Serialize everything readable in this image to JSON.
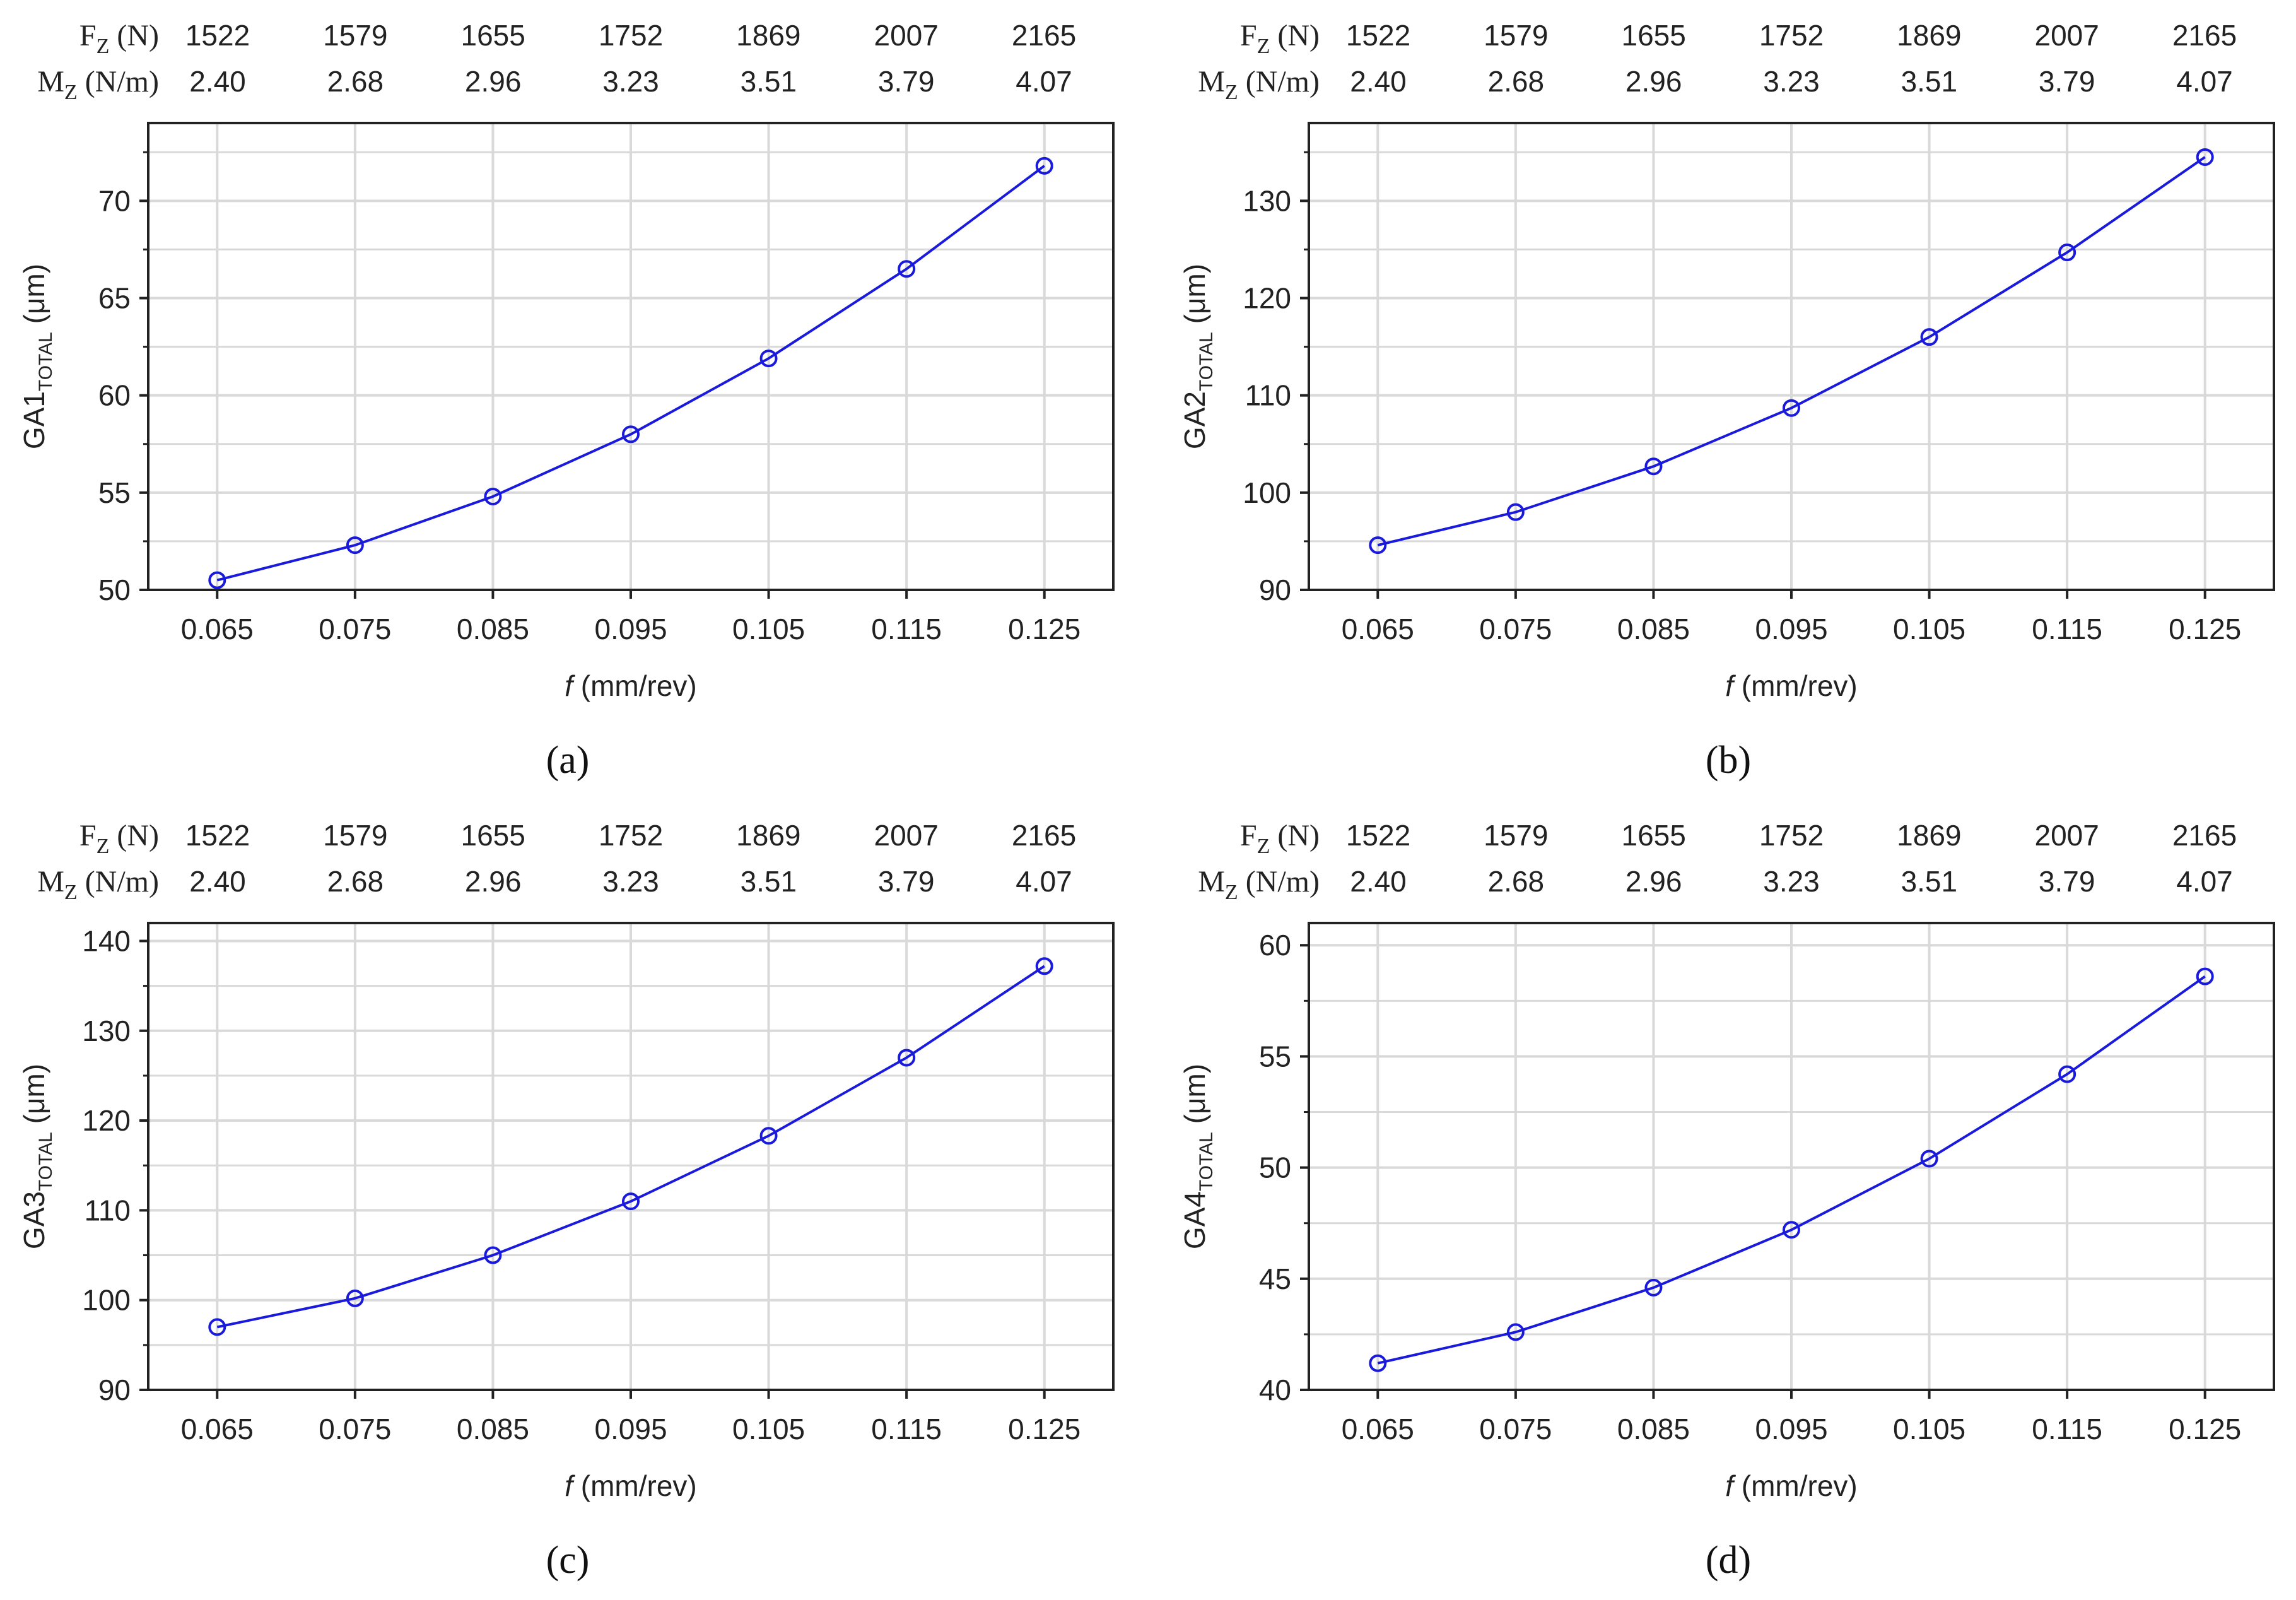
{
  "top_table": {
    "fz_label": "F",
    "fz_sub": "Z",
    "fz_unit": "(N)",
    "mz_label": "M",
    "mz_sub": "Z",
    "mz_unit": "(N/m)",
    "fz_values": [
      "1522",
      "1579",
      "1655",
      "1752",
      "1869",
      "2007",
      "2165"
    ],
    "mz_values": [
      "2.40",
      "2.68",
      "2.96",
      "3.23",
      "3.51",
      "3.79",
      "4.07"
    ]
  },
  "x_axis": {
    "label_italic": "f",
    "label_unit": "(mm/rev)",
    "tick_labels": [
      "0.065",
      "0.075",
      "0.085",
      "0.095",
      "0.105",
      "0.115",
      "0.125"
    ]
  },
  "colors": {
    "series": "#1a1adc",
    "grid": "#d9d9d9",
    "axis": "#222222"
  },
  "panels": [
    {
      "caption": "(a)",
      "ylabel": "GA1",
      "ylabel_sub": "TOTAL",
      "ylabel_unit": "(μm)",
      "yticks": [
        "50",
        "55",
        "60",
        "65",
        "70"
      ]
    },
    {
      "caption": "(b)",
      "ylabel": "GA2",
      "ylabel_sub": "TOTAL",
      "ylabel_unit": "(μm)",
      "yticks": [
        "90",
        "100",
        "110",
        "120",
        "130"
      ]
    },
    {
      "caption": "(c)",
      "ylabel": "GA3",
      "ylabel_sub": "TOTAL",
      "ylabel_unit": "(μm)",
      "yticks": [
        "90",
        "100",
        "110",
        "120",
        "130",
        "140"
      ]
    },
    {
      "caption": "(d)",
      "ylabel": "GA4",
      "ylabel_sub": "TOTAL",
      "ylabel_unit": "(μm)",
      "yticks": [
        "40",
        "45",
        "50",
        "55",
        "60"
      ]
    }
  ],
  "chart_data": [
    {
      "type": "line",
      "title": "",
      "xlabel": "f (mm/rev)",
      "ylabel": "GA1TOTAL (μm)",
      "x": [
        0.065,
        0.075,
        0.085,
        0.095,
        0.105,
        0.115,
        0.125
      ],
      "y": [
        50.5,
        52.3,
        54.8,
        58.0,
        61.9,
        66.5,
        71.8
      ],
      "xlim": [
        0.06,
        0.13
      ],
      "ylim": [
        50,
        74
      ],
      "grid": true
    },
    {
      "type": "line",
      "title": "",
      "xlabel": "f (mm/rev)",
      "ylabel": "GA2TOTAL (μm)",
      "x": [
        0.065,
        0.075,
        0.085,
        0.095,
        0.105,
        0.115,
        0.125
      ],
      "y": [
        94.6,
        98.0,
        102.7,
        108.7,
        116.0,
        124.7,
        134.5
      ],
      "xlim": [
        0.06,
        0.13
      ],
      "ylim": [
        90,
        138
      ],
      "grid": true
    },
    {
      "type": "line",
      "title": "",
      "xlabel": "f (mm/rev)",
      "ylabel": "GA3TOTAL (μm)",
      "x": [
        0.065,
        0.075,
        0.085,
        0.095,
        0.105,
        0.115,
        0.125
      ],
      "y": [
        97.0,
        100.2,
        105.0,
        111.0,
        118.3,
        127.0,
        137.2
      ],
      "xlim": [
        0.06,
        0.13
      ],
      "ylim": [
        90,
        142
      ],
      "grid": true
    },
    {
      "type": "line",
      "title": "",
      "xlabel": "f (mm/rev)",
      "ylabel": "GA4TOTAL (μm)",
      "x": [
        0.065,
        0.075,
        0.085,
        0.095,
        0.105,
        0.115,
        0.125
      ],
      "y": [
        41.2,
        42.6,
        44.6,
        47.2,
        50.4,
        54.2,
        58.6
      ],
      "xlim": [
        0.06,
        0.13
      ],
      "ylim": [
        40,
        61
      ],
      "grid": true
    }
  ]
}
